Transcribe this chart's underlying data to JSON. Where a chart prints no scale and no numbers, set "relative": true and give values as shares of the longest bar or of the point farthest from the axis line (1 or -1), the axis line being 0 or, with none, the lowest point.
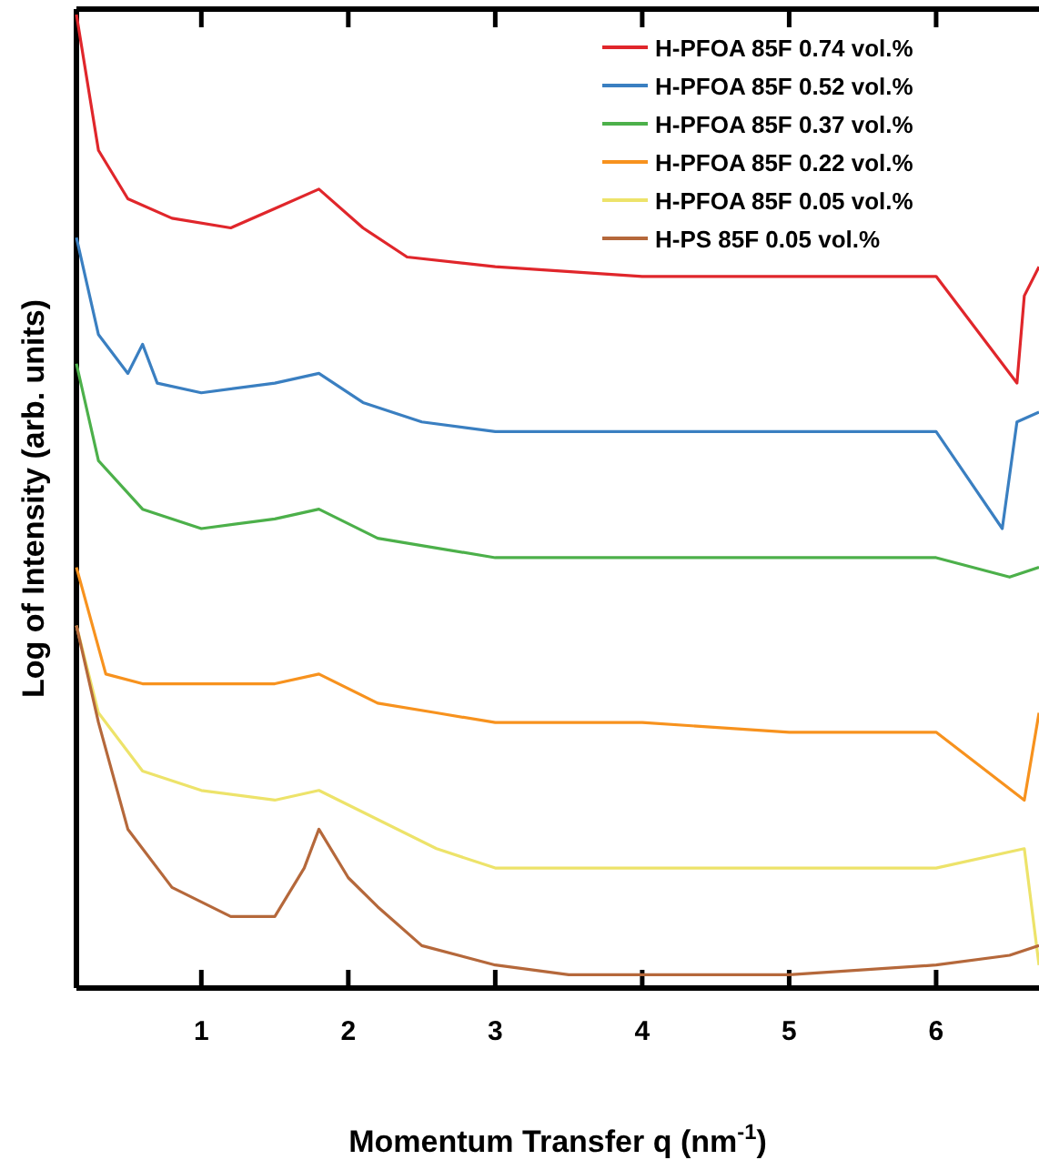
{
  "chart_data": {
    "type": "line",
    "relative": true,
    "xlabel": "Momentum Transfer q (nm$^{-1}$)",
    "ylabel": "Log of Intensity (arb. units)",
    "xlim": [
      0.15,
      6.7
    ],
    "xticks": [
      1,
      2,
      3,
      4,
      5,
      6
    ],
    "legend": "top right",
    "grid": false,
    "marker": "none",
    "line_style": "solid",
    "series": [
      {
        "name": "H-PFOA 85F 0.74 vol.%",
        "color": "#e0262b",
        "x": [
          0.15,
          0.3,
          0.5,
          0.8,
          1.2,
          1.5,
          1.8,
          2.1,
          2.4,
          3,
          4,
          5,
          6,
          6.55,
          6.6,
          6.7
        ],
        "values": [
          1.0,
          0.86,
          0.81,
          0.79,
          0.78,
          0.8,
          0.82,
          0.78,
          0.75,
          0.74,
          0.73,
          0.73,
          0.73,
          0.62,
          0.71,
          0.74
        ]
      },
      {
        "name": "H-PFOA 85F 0.52 vol.%",
        "color": "#3a7fc1",
        "x": [
          0.15,
          0.3,
          0.5,
          0.6,
          0.7,
          1,
          1.5,
          1.8,
          2.1,
          2.5,
          3,
          4,
          5,
          6,
          6.45,
          6.55,
          6.7
        ],
        "values": [
          0.77,
          0.67,
          0.63,
          0.66,
          0.62,
          0.61,
          0.62,
          0.63,
          0.6,
          0.58,
          0.57,
          0.57,
          0.57,
          0.57,
          0.47,
          0.58,
          0.59
        ]
      },
      {
        "name": "H-PFOA 85F 0.37 vol.%",
        "color": "#4cb04a",
        "x": [
          0.15,
          0.3,
          0.6,
          1,
          1.5,
          1.8,
          2.2,
          2.6,
          3,
          4,
          5,
          6,
          6.5,
          6.7
        ],
        "values": [
          0.64,
          0.54,
          0.49,
          0.47,
          0.48,
          0.49,
          0.46,
          0.45,
          0.44,
          0.44,
          0.44,
          0.44,
          0.42,
          0.43
        ]
      },
      {
        "name": "H-PFOA 85F 0.22 vol.%",
        "color": "#f7921e",
        "x": [
          0.15,
          0.35,
          0.6,
          1,
          1.5,
          1.8,
          2.2,
          2.6,
          3,
          4,
          5,
          6,
          6.6,
          6.7
        ],
        "values": [
          0.43,
          0.32,
          0.31,
          0.31,
          0.31,
          0.32,
          0.29,
          0.28,
          0.27,
          0.27,
          0.26,
          0.26,
          0.19,
          0.28
        ]
      },
      {
        "name": "H-PFOA 85F 0.05 vol.%",
        "color": "#ede36a",
        "x": [
          0.15,
          0.3,
          0.6,
          1,
          1.5,
          1.8,
          2.2,
          2.6,
          3,
          4,
          5,
          6,
          6.6,
          6.7
        ],
        "values": [
          0.37,
          0.28,
          0.22,
          0.2,
          0.19,
          0.2,
          0.17,
          0.14,
          0.12,
          0.12,
          0.12,
          0.12,
          0.14,
          0.02
        ]
      },
      {
        "name": "H-PS 85F 0.05 vol.%",
        "color": "#b5683b",
        "x": [
          0.15,
          0.3,
          0.5,
          0.8,
          1.2,
          1.5,
          1.7,
          1.8,
          2,
          2.2,
          2.5,
          3,
          3.5,
          4,
          5,
          6,
          6.5,
          6.7
        ],
        "values": [
          0.37,
          0.27,
          0.16,
          0.1,
          0.07,
          0.07,
          0.12,
          0.16,
          0.11,
          0.08,
          0.04,
          0.02,
          0.01,
          0.01,
          0.01,
          0.02,
          0.03,
          0.04
        ]
      }
    ]
  }
}
